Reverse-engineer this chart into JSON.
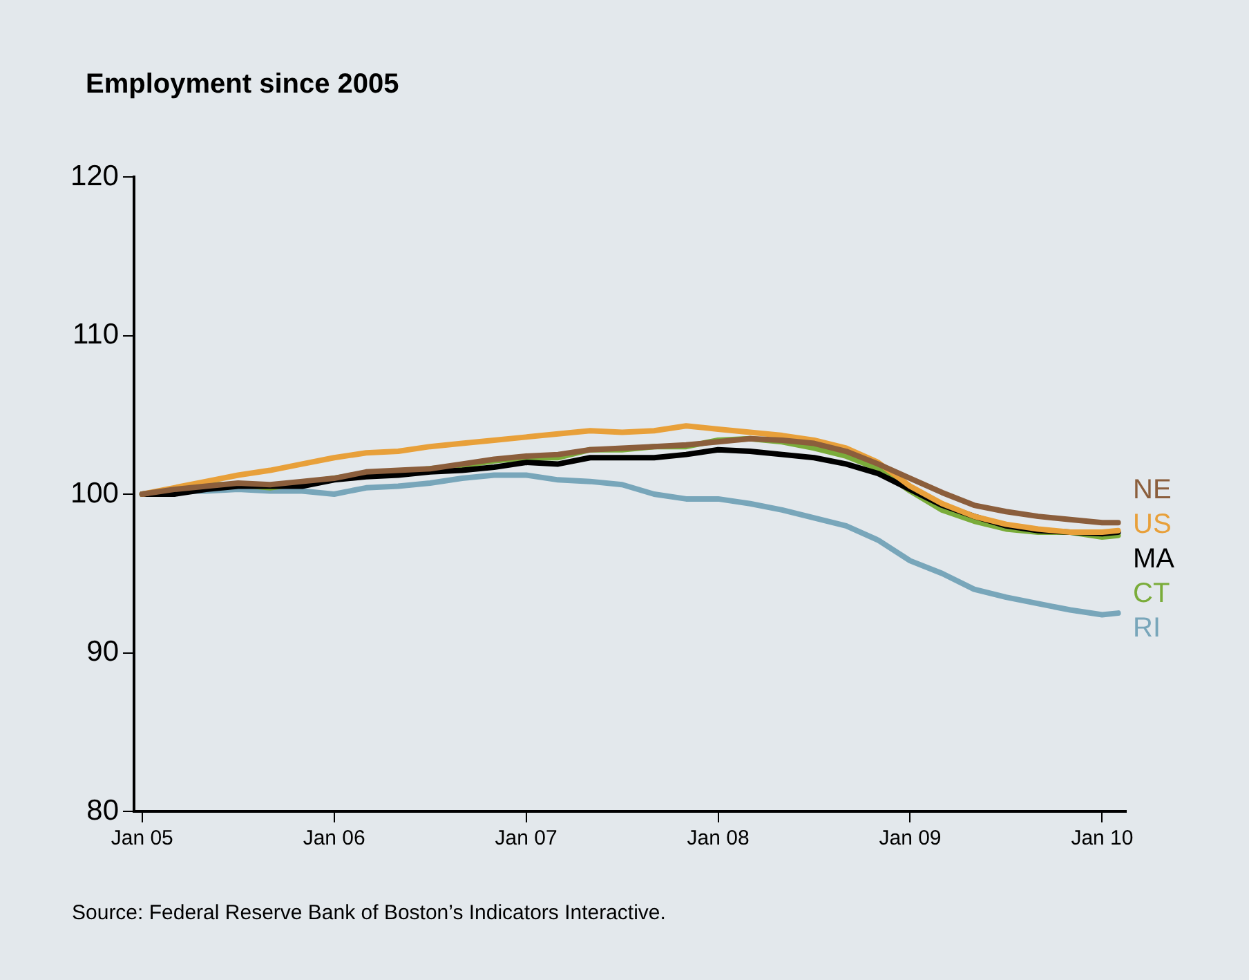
{
  "chart_data": {
    "type": "line",
    "title": "Employment since 2005",
    "annotations": [
      "Source: Federal Reserve Bank of Boston’s Indicators Interactive."
    ],
    "x": [
      "2005-01",
      "2005-03",
      "2005-05",
      "2005-07",
      "2005-09",
      "2005-11",
      "2006-01",
      "2006-03",
      "2006-05",
      "2006-07",
      "2006-09",
      "2006-11",
      "2007-01",
      "2007-03",
      "2007-05",
      "2007-07",
      "2007-09",
      "2007-11",
      "2008-01",
      "2008-03",
      "2008-05",
      "2008-07",
      "2008-09",
      "2008-11",
      "2009-01",
      "2009-03",
      "2009-05",
      "2009-07",
      "2009-09",
      "2009-11",
      "2010-01",
      "2010-02"
    ],
    "series": [
      {
        "name": "NE",
        "color": "#8b5e3c",
        "values": [
          100,
          100.3,
          100.5,
          100.7,
          100.6,
          100.8,
          101.0,
          101.4,
          101.5,
          101.6,
          101.9,
          102.2,
          102.4,
          102.5,
          102.8,
          102.9,
          103.0,
          103.1,
          103.3,
          103.5,
          103.4,
          103.2,
          102.7,
          101.9,
          101.0,
          100.1,
          99.3,
          98.9,
          98.6,
          98.4,
          98.2,
          98.2
        ]
      },
      {
        "name": "US",
        "color": "#e8a03a",
        "values": [
          100,
          100.4,
          100.8,
          101.2,
          101.5,
          101.9,
          102.3,
          102.6,
          102.7,
          103.0,
          103.2,
          103.4,
          103.6,
          103.8,
          104.0,
          103.9,
          104.0,
          104.3,
          104.1,
          103.9,
          103.7,
          103.4,
          102.9,
          102.0,
          100.5,
          99.4,
          98.6,
          98.1,
          97.8,
          97.6,
          97.6,
          97.7
        ]
      },
      {
        "name": "MA",
        "color": "#000000",
        "values": [
          100,
          100.0,
          100.3,
          100.5,
          100.5,
          100.5,
          100.9,
          101.1,
          101.2,
          101.4,
          101.5,
          101.7,
          102.0,
          101.9,
          102.3,
          102.3,
          102.3,
          102.5,
          102.8,
          102.7,
          102.5,
          102.3,
          101.9,
          101.3,
          100.3,
          99.3,
          98.6,
          98.0,
          97.7,
          97.6,
          97.5,
          97.6
        ]
      },
      {
        "name": "CT",
        "color": "#7aac3a",
        "values": [
          100,
          100.2,
          100.6,
          100.6,
          100.4,
          100.7,
          101.0,
          101.3,
          101.4,
          101.6,
          101.8,
          102.1,
          102.3,
          102.3,
          102.8,
          102.8,
          103.0,
          103.0,
          103.4,
          103.5,
          103.3,
          102.9,
          102.4,
          101.6,
          100.2,
          99.0,
          98.3,
          97.8,
          97.6,
          97.6,
          97.3,
          97.4
        ]
      },
      {
        "name": "RI",
        "color": "#78a6ba",
        "values": [
          100,
          100.2,
          100.2,
          100.3,
          100.2,
          100.2,
          100.0,
          100.4,
          100.5,
          100.7,
          101.0,
          101.2,
          101.2,
          100.9,
          100.8,
          100.6,
          100.0,
          99.7,
          99.7,
          99.4,
          99.0,
          98.5,
          98.0,
          97.1,
          95.8,
          95.0,
          94.0,
          93.5,
          93.1,
          92.7,
          92.4,
          92.5
        ]
      }
    ],
    "xlim": [
      "2004-12-16",
      "2010-02-16"
    ],
    "xticks": [
      {
        "value": "2005-01",
        "label": "Jan 05"
      },
      {
        "value": "2006-01",
        "label": "Jan 06"
      },
      {
        "value": "2007-01",
        "label": "Jan 07"
      },
      {
        "value": "2008-01",
        "label": "Jan 08"
      },
      {
        "value": "2009-01",
        "label": "Jan 09"
      },
      {
        "value": "2010-01",
        "label": "Jan 10"
      }
    ],
    "ylim": [
      80,
      120
    ],
    "yticks": [
      80,
      90,
      100,
      110,
      120
    ],
    "grid": false,
    "legend": "right",
    "marker": "none",
    "line_style": "solid"
  }
}
